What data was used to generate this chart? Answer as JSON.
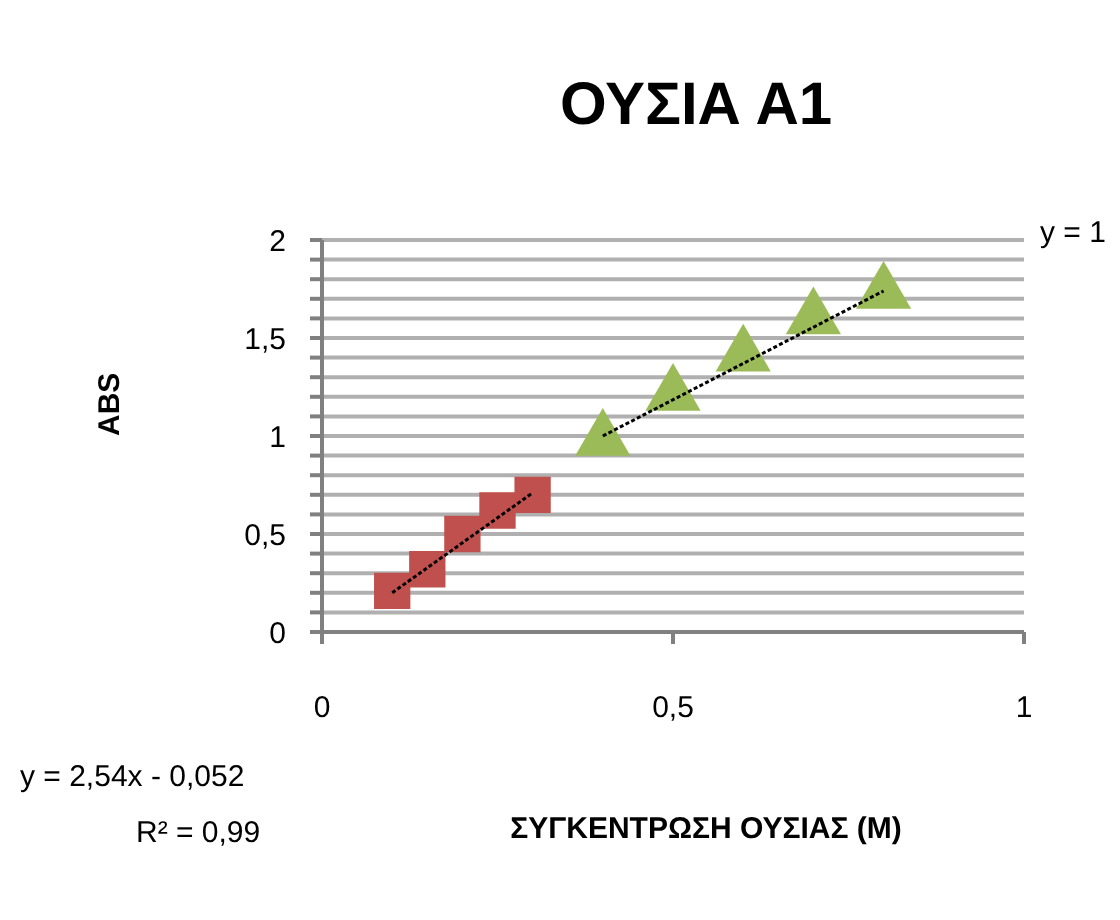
{
  "chart_data": {
    "type": "scatter",
    "title": "ΟΥΣΙΑ Α1",
    "xlabel": "ΣΥΓΚΕΝΤΡΩΣΗ  ΟΥΣΙΑΣ  (M)",
    "ylabel": "ABS",
    "series": [
      {
        "marker": "square",
        "color": "#c0504d",
        "x": [
          0.1,
          0.15,
          0.2,
          0.25,
          0.3
        ],
        "values": [
          0.21,
          0.32,
          0.5,
          0.62,
          0.7
        ]
      },
      {
        "marker": "triangle",
        "color": "#9bbb59",
        "x": [
          0.4,
          0.5,
          0.6,
          0.7,
          0.8
        ],
        "values": [
          0.98,
          1.21,
          1.41,
          1.6,
          1.73
        ]
      },
      {
        "type": "line",
        "marker": "none",
        "line_style": "dotted",
        "color": "#000000",
        "x": [
          0.1,
          0.3
        ],
        "values": [
          0.2,
          0.71
        ]
      },
      {
        "type": "line",
        "marker": "none",
        "line_style": "dotted",
        "color": "#000000",
        "x": [
          0.4,
          0.8
        ],
        "values": [
          1.0,
          1.74
        ]
      }
    ],
    "xlim": [
      0,
      1
    ],
    "xticks": [
      0,
      {
        "value": 0.5,
        "label": "0,5"
      },
      1
    ],
    "ylim": [
      0,
      2
    ],
    "yticks": [
      0,
      {
        "value": 0.1,
        "label": null
      },
      {
        "value": 0.2,
        "label": null
      },
      {
        "value": 0.3,
        "label": null
      },
      {
        "value": 0.4,
        "label": null
      },
      {
        "value": 0.5,
        "label": "0,5"
      },
      {
        "value": 0.6,
        "label": null
      },
      {
        "value": 0.7,
        "label": null
      },
      {
        "value": 0.8,
        "label": null
      },
      {
        "value": 0.9,
        "label": null
      },
      1,
      {
        "value": 1.1,
        "label": null
      },
      {
        "value": 1.2,
        "label": null
      },
      {
        "value": 1.3,
        "label": null
      },
      {
        "value": 1.4,
        "label": null
      },
      {
        "value": 1.5,
        "label": "1,5"
      },
      {
        "value": 1.6,
        "label": null
      },
      {
        "value": 1.7,
        "label": null
      },
      {
        "value": 1.8,
        "label": null
      },
      {
        "value": 1.9,
        "label": null
      },
      2
    ],
    "grid": "y",
    "legend": false,
    "annotations": [
      "y = 2,54x - 0,052",
      "R² = 0,99",
      "y = 1"
    ]
  }
}
